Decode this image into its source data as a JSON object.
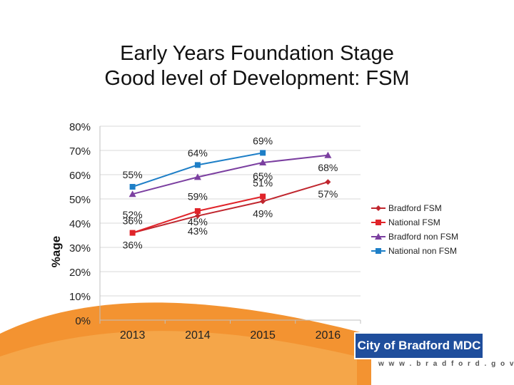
{
  "slide": {
    "title_line1": "Early Years Foundation Stage",
    "title_line2": "Good level of Development: FSM"
  },
  "branding": {
    "org": "City of Bradford MDC",
    "url": "w w w . b r a d f o r d . g o v . u k"
  },
  "colors": {
    "bradford_fsm": "#c0262e",
    "national_fsm": "#e0242a",
    "bradford_non_fsm": "#7b3fa0",
    "national_non_fsm": "#1e7fc7",
    "swoosh": "#f28a1f"
  },
  "chart_data": {
    "type": "line",
    "title": "",
    "xlabel": "",
    "ylabel": "%age",
    "categories": [
      "2013",
      "2014",
      "2015",
      "2016"
    ],
    "ylim": [
      0,
      80
    ],
    "yticks": [
      "0%",
      "10%",
      "20%",
      "30%",
      "40%",
      "50%",
      "60%",
      "70%",
      "80%"
    ],
    "legend_position": "right",
    "series": [
      {
        "name": "Bradford FSM",
        "values": [
          36,
          43,
          49,
          57
        ],
        "labels": [
          "36%",
          "43%",
          "49%",
          "57%"
        ],
        "marker": "diamond",
        "color": "#c0262e"
      },
      {
        "name": "National FSM",
        "values": [
          36,
          45,
          51,
          null
        ],
        "labels": [
          "36%",
          "45%",
          "51%",
          null
        ],
        "marker": "square",
        "color": "#e0242a"
      },
      {
        "name": "Bradford non FSM",
        "values": [
          52,
          59,
          65,
          68
        ],
        "labels": [
          "52%",
          "59%",
          "65%",
          "68%"
        ],
        "marker": "triangle",
        "color": "#7b3fa0"
      },
      {
        "name": "National non FSM",
        "values": [
          55,
          64,
          69,
          null
        ],
        "labels": [
          "55%",
          "64%",
          "69%",
          null
        ],
        "marker": "square",
        "color": "#1e7fc7"
      }
    ]
  }
}
